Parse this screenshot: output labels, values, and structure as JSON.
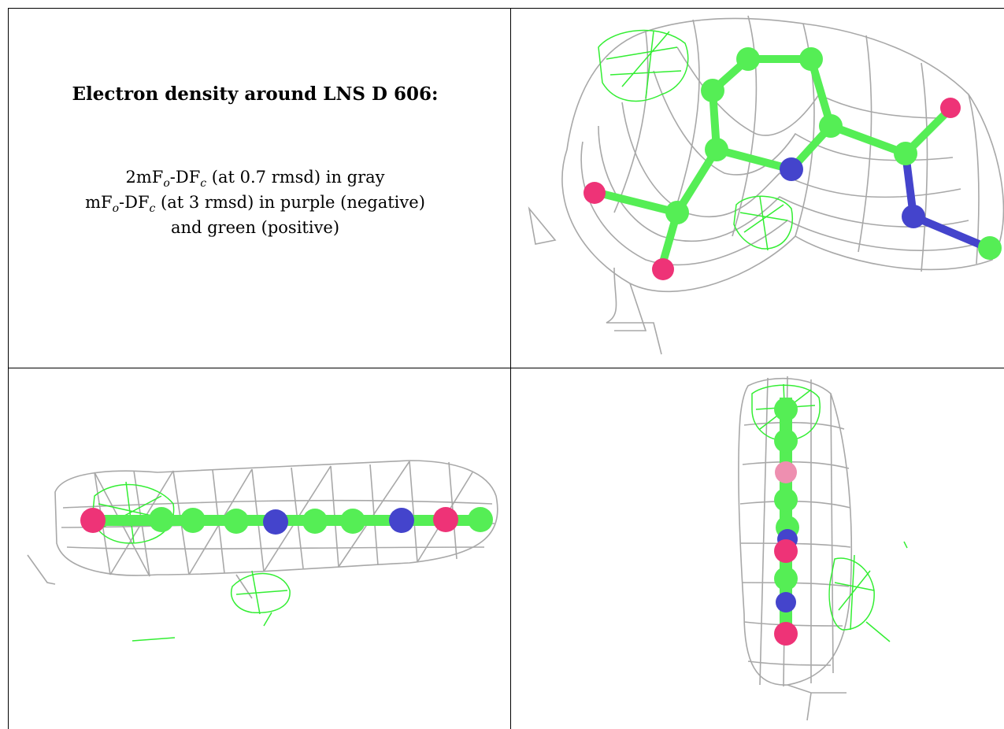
{
  "caption": {
    "title": "Electron density around LNS D 606:",
    "line1": {
      "pre": "2mF",
      "sub1": "o",
      "mid": "-DF",
      "sub2": "c",
      "post": " (at 0.7 rmsd) in gray"
    },
    "line2": {
      "pre": "mF",
      "sub1": "o",
      "mid": "-DF",
      "sub2": "c",
      "post": " (at 3 rmsd) in purple (negative)"
    },
    "line3": "and green (positive)"
  },
  "colors": {
    "mesh_gray": "#a8a8a8",
    "mesh_green": "#33ee33",
    "carbon": "#55ee55",
    "nitrogen": "#4444cc",
    "oxygen": "#ee3377",
    "border": "#000000"
  },
  "panels": [
    {
      "name": "view-top-right",
      "view": "face-on"
    },
    {
      "name": "view-bottom-left",
      "view": "edge-on horizontal"
    },
    {
      "name": "view-bottom-right",
      "view": "edge-on vertical"
    }
  ]
}
